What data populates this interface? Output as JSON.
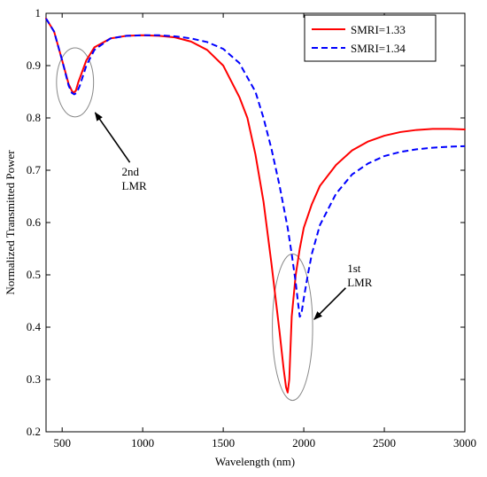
{
  "chart_data": {
    "type": "line",
    "title": "",
    "xlabel": "Wavelength (nm)",
    "ylabel": "Normalized Transmitted Power",
    "xlim": [
      400,
      3000
    ],
    "ylim": [
      0.2,
      1.0
    ],
    "xticks": [
      "500",
      "1000",
      "1500",
      "2000",
      "2500",
      "3000"
    ],
    "yticks": [
      "0.2",
      "0.3",
      "0.4",
      "0.5",
      "0.6",
      "0.7",
      "0.8",
      "0.9",
      "1"
    ],
    "legend_position": "top-right",
    "grid": false,
    "series": [
      {
        "name": "SMRI=1.33",
        "color": "#ff0000",
        "style": "solid",
        "x": [
          400,
          450,
          500,
          540,
          560,
          570,
          585,
          600,
          650,
          700,
          800,
          900,
          1000,
          1100,
          1200,
          1300,
          1400,
          1500,
          1600,
          1650,
          1700,
          1750,
          1800,
          1850,
          1875,
          1890,
          1900,
          1910,
          1925,
          1950,
          1975,
          2000,
          2050,
          2100,
          2200,
          2300,
          2400,
          2500,
          2600,
          2700,
          2800,
          2900,
          3000
        ],
        "y": [
          0.99,
          0.965,
          0.91,
          0.865,
          0.852,
          0.848,
          0.852,
          0.868,
          0.91,
          0.935,
          0.952,
          0.957,
          0.958,
          0.957,
          0.954,
          0.946,
          0.93,
          0.9,
          0.84,
          0.8,
          0.73,
          0.64,
          0.52,
          0.39,
          0.32,
          0.285,
          0.275,
          0.3,
          0.42,
          0.5,
          0.55,
          0.59,
          0.635,
          0.67,
          0.71,
          0.738,
          0.755,
          0.766,
          0.773,
          0.777,
          0.779,
          0.779,
          0.778
        ]
      },
      {
        "name": "SMRI=1.34",
        "color": "#0000ff",
        "style": "dashed",
        "x": [
          400,
          450,
          500,
          540,
          560,
          575,
          590,
          610,
          650,
          700,
          800,
          900,
          1000,
          1100,
          1200,
          1300,
          1400,
          1500,
          1600,
          1700,
          1750,
          1800,
          1850,
          1900,
          1925,
          1950,
          1965,
          1975,
          1985,
          2000,
          2025,
          2050,
          2100,
          2200,
          2300,
          2400,
          2500,
          2600,
          2700,
          2800,
          2900,
          3000
        ],
        "y": [
          0.99,
          0.965,
          0.91,
          0.862,
          0.848,
          0.845,
          0.848,
          0.862,
          0.9,
          0.93,
          0.952,
          0.957,
          0.958,
          0.958,
          0.956,
          0.952,
          0.945,
          0.932,
          0.905,
          0.85,
          0.8,
          0.74,
          0.67,
          0.59,
          0.54,
          0.485,
          0.445,
          0.42,
          0.425,
          0.455,
          0.5,
          0.54,
          0.595,
          0.655,
          0.692,
          0.713,
          0.727,
          0.735,
          0.74,
          0.743,
          0.745,
          0.746
        ]
      }
    ],
    "annotations": [
      {
        "id": "second-lmr",
        "lines": [
          "2nd",
          "LMR"
        ],
        "ellipse": {
          "cx": 580,
          "cy": 0.868,
          "rx": 115,
          "ry": 0.066
        },
        "arrow_from": {
          "x": 920,
          "y": 0.715
        },
        "arrow_to": {
          "x": 705,
          "y": 0.81
        },
        "text_at": {
          "x": 870,
          "y": 0.69
        }
      },
      {
        "id": "first-lmr",
        "lines": [
          "1st",
          "LMR"
        ],
        "ellipse": {
          "cx": 1930,
          "cy": 0.4,
          "rx": 125,
          "ry": 0.14
        },
        "arrow_from": {
          "x": 2260,
          "y": 0.475
        },
        "arrow_to": {
          "x": 2065,
          "y": 0.415
        },
        "text_at": {
          "x": 2270,
          "y": 0.505
        }
      }
    ]
  }
}
